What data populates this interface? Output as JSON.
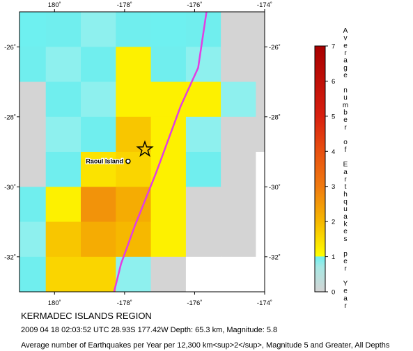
{
  "map": {
    "x_ticks": [
      "180˚",
      "-178˚",
      "-176˚",
      "-174˚"
    ],
    "y_ticks": [
      "-26˚",
      "-28˚",
      "-30˚",
      "-32˚"
    ],
    "location_label": "Raoul Island",
    "grid": {
      "lon_start": -181,
      "lat_top": -25,
      "cell_deg": 1,
      "rows": [
        [
          1,
          0.5,
          0.5,
          0.5,
          1,
          0.5,
          -1,
          -1,
          0
        ],
        [
          0.5,
          0.5,
          0.5,
          1.2,
          0.5,
          0.5,
          -1,
          -1,
          -1
        ],
        [
          -1,
          0.5,
          0.5,
          1.2,
          1.2,
          1.2,
          0.5,
          -1,
          0
        ],
        [
          -1,
          0.5,
          0.5,
          1.8,
          1.2,
          0.5,
          -1,
          -1,
          0
        ],
        [
          -1,
          0.5,
          1.4,
          1.6,
          1.2,
          0.5,
          -1,
          0,
          0
        ],
        [
          0.5,
          1.2,
          2.6,
          2.2,
          1.2,
          -1,
          -1,
          0,
          0
        ],
        [
          0.5,
          1.8,
          2.2,
          2.0,
          1.2,
          -1,
          -1,
          0,
          0
        ],
        [
          0.5,
          1.6,
          1.6,
          0.5,
          -1,
          0,
          0,
          0,
          0
        ],
        [
          1,
          1.4,
          1.4,
          0.5,
          0.5,
          0,
          0,
          0,
          0
        ]
      ]
    },
    "trench_line": [
      [
        -175.6,
        -24.6
      ],
      [
        -175.9,
        -26.6
      ],
      [
        -176.4,
        -27.7
      ],
      [
        -177.1,
        -29.6
      ],
      [
        -177.7,
        -31.1
      ],
      [
        -178.1,
        -32.2
      ],
      [
        -178.3,
        -33.0
      ]
    ],
    "epicenter": {
      "lon": -177.42,
      "lat": -28.93
    },
    "raoul_island": {
      "lon": -177.9,
      "lat": -29.27
    },
    "colors": {
      "trench": "#e23ee2",
      "frame": "#000000"
    }
  },
  "scale": {
    "title": "Average number of Earthquakes per Year",
    "ticks": [
      "0",
      "1",
      "2",
      "3",
      "4",
      "5",
      "6",
      "7"
    ],
    "min": 0,
    "max": 7,
    "stops": [
      {
        "v": 0,
        "color": "#d4d4d4"
      },
      {
        "v": 0.7,
        "color": "#a8e8e4"
      },
      {
        "v": 1,
        "color": "#6ef0f0"
      },
      {
        "v": 1.01,
        "color": "#ffff00"
      },
      {
        "v": 2,
        "color": "#f6b800"
      },
      {
        "v": 3,
        "color": "#f07a10"
      },
      {
        "v": 4,
        "color": "#e85010"
      },
      {
        "v": 5,
        "color": "#d82010"
      },
      {
        "v": 7,
        "color": "#a80000"
      }
    ]
  },
  "caption": {
    "title": "KERMADEC ISLANDS REGION",
    "event": "2009 04 18 02:03:52 UTC 28.93S 177.42W Depth: 65.3 km, Magnitude: 5.8",
    "description": "Average number of Earthquakes per Year per 12,300 km<sup>2</sup>, Magnitude 5 and Greater, All Depths"
  }
}
